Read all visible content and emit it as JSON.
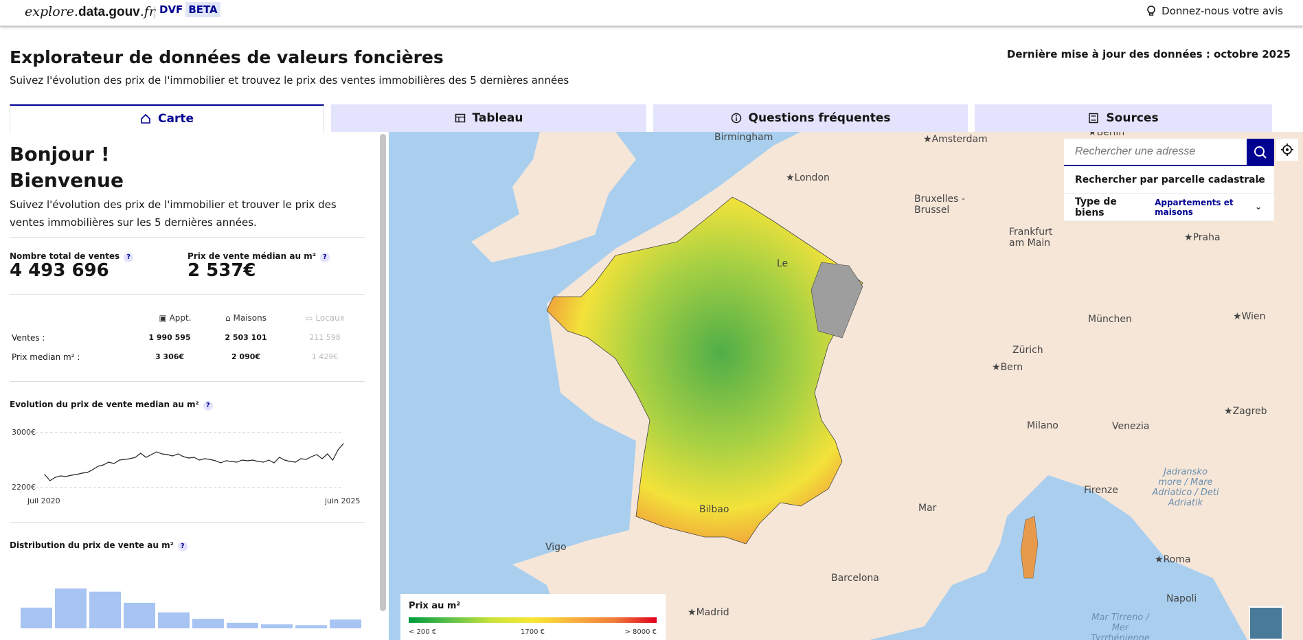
{
  "topbar": {
    "brand_plain": "explore.",
    "brand_bold": "data.gouv",
    "brand_tail": ".fr",
    "product": "DVF",
    "beta": "BETA",
    "feedback_label": "Donnez-nous votre avis"
  },
  "header": {
    "title": "Explorateur de données de valeurs foncières",
    "subtitle": "Suivez l'évolution des prix de l'immobilier et trouvez le prix des ventes immobilières des 5 dernières années",
    "update": "Dernière mise à jour des données : octobre 2025"
  },
  "tabs": [
    {
      "label": "Carte",
      "icon": "home-icon"
    },
    {
      "label": "Tableau",
      "icon": "table-icon"
    },
    {
      "label": "Questions fréquentes",
      "icon": "info-icon"
    },
    {
      "label": "Sources",
      "icon": "book-icon"
    }
  ],
  "panel": {
    "hello_1": "Bonjour !",
    "hello_2": "Bienvenue",
    "intro": "Suivez l'évolution des prix de l'immobilier et trouver le prix des ventes immobilières sur les 5 dernières années.",
    "kpi_sales_label": "Nombre total de ventes",
    "kpi_sales_value": "4 493 696",
    "kpi_price_label": "Prix de vente médian au m²",
    "kpi_price_value": "2 537€",
    "help": "?",
    "table": {
      "cols": [
        "Appt.",
        "Maisons",
        "Locaux"
      ],
      "rows": [
        {
          "label": "Ventes :",
          "values": [
            "1 990 595",
            "2 503 101",
            "211 598"
          ]
        },
        {
          "label": "Prix median m² :",
          "values": [
            "3 306€",
            "2 090€",
            "1 429€"
          ]
        }
      ]
    },
    "evolution_title": "Evolution du prix de vente median au m²",
    "evo_y_top": "3000€",
    "evo_y_bottom": "2200€",
    "evo_x_start": "juil 2020",
    "evo_x_end": "juin 2025",
    "distribution_title": "Distribution du prix de vente au m²"
  },
  "map": {
    "search_placeholder": "Rechercher une adresse",
    "cadastre_label": "Rechercher par parcelle cadastrale",
    "type_label": "Type de biens",
    "type_value": "Appartements et maisons",
    "legend_title": "Prix au m²",
    "legend_min": "< 200 €",
    "legend_mid": "1700 €",
    "legend_max": "> 8000 €",
    "places": [
      "Birmingham",
      "Amsterdam",
      "Berlin",
      "London",
      "Bruxelles - Brussel",
      "Frankfurt am Main",
      "Praha",
      "Le",
      "München",
      "Wien",
      "Zürich",
      "Bern",
      "Zagreb",
      "Milano",
      "Venezia",
      "Firenze",
      "Bilbao",
      "Vigo",
      "Barcelona",
      "Madrid",
      "Roma",
      "Napoli",
      "Mar"
    ],
    "seas": [
      "Jadransko more / Mare Adriatico / Deti Adriatik",
      "Mar Tirreno / Mer Tyrrhénienne"
    ]
  },
  "chart_data": [
    {
      "type": "line",
      "title": "Evolution du prix de vente median au m²",
      "x_start": "juil 2020",
      "x_end": "juin 2025",
      "ylim": [
        2200,
        3000
      ],
      "values": [
        2390,
        2300,
        2350,
        2370,
        2360,
        2380,
        2390,
        2410,
        2420,
        2460,
        2510,
        2530,
        2570,
        2550,
        2600,
        2610,
        2620,
        2640,
        2700,
        2640,
        2680,
        2720,
        2690,
        2680,
        2660,
        2690,
        2650,
        2630,
        2640,
        2600,
        2620,
        2610,
        2590,
        2560,
        2590,
        2580,
        2570,
        2600,
        2590,
        2600,
        2580,
        2570,
        2600,
        2560,
        2640,
        2600,
        2580,
        2570,
        2620,
        2610,
        2650,
        2680,
        2620,
        2690,
        2600,
        2750,
        2840
      ]
    },
    {
      "type": "bar",
      "title": "Distribution du prix de vente au m²",
      "values": [
        26,
        50,
        46,
        32,
        20,
        12,
        7,
        5,
        4,
        11
      ]
    }
  ]
}
